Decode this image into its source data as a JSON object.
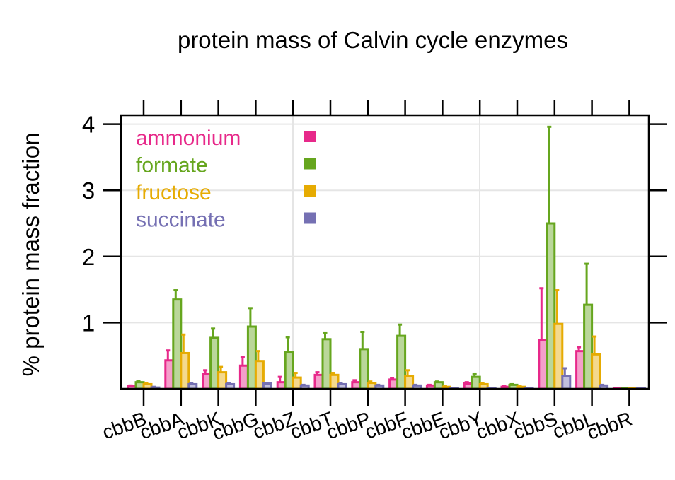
{
  "chart_data": {
    "type": "bar",
    "title": "protein mass of Calvin cycle enzymes",
    "ylabel": "% protein mass fraction",
    "xlabel": "",
    "ylim": [
      0,
      4.1
    ],
    "yticks": [
      "1",
      "2",
      "3",
      "4"
    ],
    "grid": true,
    "legend_position": "top-left",
    "categories": [
      "cbbB",
      "cbbA",
      "cbbK",
      "cbbG",
      "cbbZ",
      "cbbT",
      "cbbP",
      "cbbF",
      "cbbE",
      "cbbY",
      "cbbX",
      "cbbS",
      "cbbL",
      "cbbR"
    ],
    "series": [
      {
        "name": "ammonium",
        "color": "#E7298A",
        "values": [
          0.04,
          0.43,
          0.23,
          0.35,
          0.1,
          0.21,
          0.1,
          0.14,
          0.05,
          0.08,
          0.03,
          0.74,
          0.57,
          0.0
        ],
        "errors": [
          0.01,
          0.15,
          0.05,
          0.13,
          0.08,
          0.04,
          0.03,
          0.02,
          0.01,
          0.02,
          0.01,
          0.78,
          0.06,
          0.0
        ]
      },
      {
        "name": "formate",
        "color": "#66A61E",
        "values": [
          0.1,
          1.35,
          0.77,
          0.94,
          0.55,
          0.75,
          0.6,
          0.8,
          0.1,
          0.18,
          0.06,
          2.5,
          1.27,
          0.0
        ],
        "errors": [
          0.02,
          0.14,
          0.14,
          0.28,
          0.23,
          0.1,
          0.26,
          0.17,
          0.01,
          0.05,
          0.01,
          1.46,
          0.62,
          0.0
        ]
      },
      {
        "name": "fructose",
        "color": "#E6AB02",
        "values": [
          0.07,
          0.54,
          0.25,
          0.42,
          0.17,
          0.21,
          0.09,
          0.19,
          0.03,
          0.07,
          0.03,
          0.98,
          0.52,
          0.0
        ],
        "errors": [
          0.01,
          0.28,
          0.08,
          0.15,
          0.07,
          0.03,
          0.02,
          0.09,
          0.01,
          0.01,
          0.01,
          0.51,
          0.27,
          0.0
        ]
      },
      {
        "name": "succinate",
        "color": "#7570B3",
        "values": [
          0.02,
          0.07,
          0.07,
          0.08,
          0.05,
          0.07,
          0.05,
          0.05,
          0.01,
          0.01,
          0.01,
          0.19,
          0.05,
          0.0
        ],
        "errors": [
          0.01,
          0.01,
          0.01,
          0.01,
          0.01,
          0.01,
          0.01,
          0.01,
          0.0,
          0.0,
          0.0,
          0.12,
          0.01,
          0.0
        ]
      }
    ]
  }
}
